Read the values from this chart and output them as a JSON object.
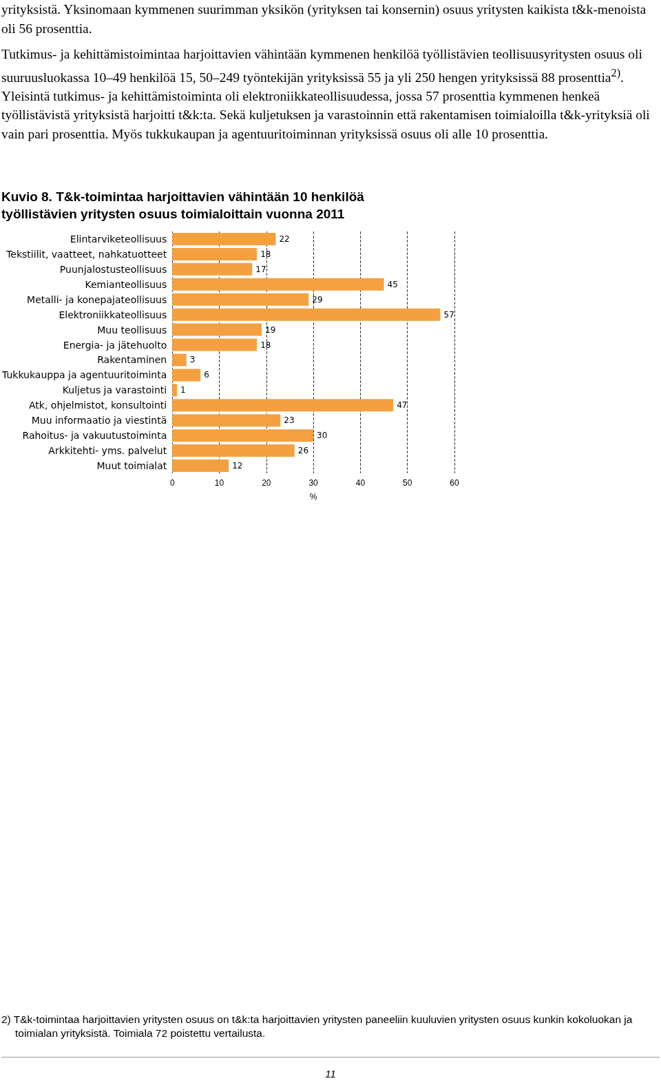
{
  "chart_data": {
    "type": "bar",
    "orientation": "horizontal",
    "title": "Kuvio 8. T&k-toimintaa harjoittavien vähintään 10 henkilöä työllistävien yritysten osuus toimialoittain vuonna 2011",
    "categories": [
      "Elintarviketeollisuus",
      "Tekstiilit, vaatteet, nahkatuotteet",
      "Puunjalostusteollisuus",
      "Kemianteollisuus",
      "Metalli- ja konepajateollisuus",
      "Elektroniikkateollisuus",
      "Muu teollisuus",
      "Energia- ja jätehuolto",
      "Rakentaminen",
      "Tukkukauppa ja agentuuritoiminta",
      "Kuljetus ja varastointi",
      "Atk, ohjelmistot, konsultointi",
      "Muu informaatio ja viestintä",
      "Rahoitus- ja vakuutustoiminta",
      "Arkkitehti- yms. palvelut",
      "Muut toimialat"
    ],
    "values": [
      22,
      18,
      17,
      45,
      29,
      57,
      19,
      18,
      3,
      6,
      1,
      47,
      23,
      30,
      26,
      12
    ],
    "color": "#f4a040",
    "xlabel": "%",
    "xlim": [
      0,
      60
    ],
    "xticks": [
      0,
      10,
      20,
      30,
      40,
      50,
      60
    ],
    "grid": "x",
    "data_labels": true,
    "annotations": [
      "yrityksistä. Yksinomaan kymmenen suurimman yksikön (yrityksen tai konsernin) osuus yritysten kaikista t&k-menoista oli 56 prosenttia.",
      "Tutkimus- ja kehittämistoimintaa harjoittavien vähintään kymmenen henkilöä työllistävien teollisuusyritysten osuus oli suuruusluokassa 10–49 henkilöä 15, 50–249 työntekijän yrityksissä 55 ja yli 250 hengen yrityksissä 88 prosenttia$^{2)}$. Yleisintä tutkimus- ja kehittämistoiminta oli elektroniikkateollisuudessa, jossa 57 prosenttia kymmenen henkeä työllistävistä yrityksistä harjoitti t&k:ta. Sekä kuljetuksen ja varastoinnin että rakentamisen toimialoilla t&k-yrityksiä oli vain pari prosenttia. Myös tukkukaupan ja agentuuritoiminnan yrityksissä osuus oli alle 10 prosenttia.",
      "2) T&k-toimintaa harjoittavien yritysten osuus on t&k:ta harjoittavien yritysten paneeliin kuuluvien yritysten osuus kunkin kokoluokan ja toimialan yrityksistä. Toimiala 72 poistettu vertailusta.",
      "11"
    ]
  }
}
